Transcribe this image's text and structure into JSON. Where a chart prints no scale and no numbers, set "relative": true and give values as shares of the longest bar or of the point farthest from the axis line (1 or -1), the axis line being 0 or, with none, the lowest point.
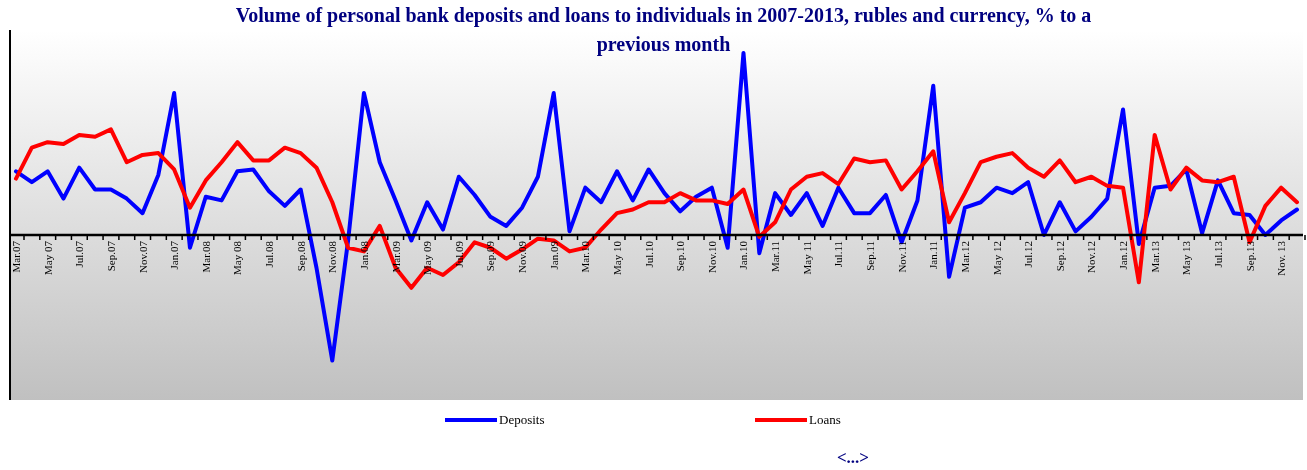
{
  "chart_data": {
    "type": "line",
    "title": "Volume of personal bank deposits and loans to individuals in 2007-2013, rubles and currency, % to a previous month",
    "relative": true,
    "legend": "bottom",
    "marker": "none",
    "line_style": "solid",
    "annotations": [
      "<...>"
    ],
    "categories": [
      "Mar.07",
      null,
      "May 07",
      null,
      "Jul.07",
      null,
      "Sep.07",
      null,
      "Nov.07",
      null,
      "Jan.07",
      null,
      "Mar.08",
      null,
      "May 08",
      null,
      "Jul.08",
      null,
      "Sep.08",
      null,
      "Nov.08",
      null,
      "Jan.08",
      null,
      "Mar.09",
      null,
      "May 09",
      null,
      "Jul.09",
      null,
      "Sep.09",
      null,
      "Nov.09",
      null,
      "Jan.09",
      null,
      "Mar.10",
      null,
      "May 10",
      null,
      "Jul.10",
      null,
      "Sep.10",
      null,
      "Nov.10",
      null,
      "Jan.10",
      null,
      "Mar.11",
      null,
      "May 11",
      null,
      "Jul.11",
      null,
      "Sep.11",
      null,
      "Nov.11",
      null,
      "Jan.11",
      null,
      "Mar.12",
      null,
      "May 12",
      null,
      "Jul.12",
      null,
      "Sep.12",
      null,
      "Nov.12",
      null,
      "Jan.12",
      null,
      "Mar.13",
      null,
      "May 13",
      null,
      "Jul.13",
      null,
      "Sep.13",
      null,
      "Nov. 13",
      null
    ],
    "series": [
      {
        "name": "Deposits",
        "color": "#0000ff",
        "values": [
          0.35,
          0.29,
          0.35,
          0.2,
          0.37,
          0.25,
          0.25,
          0.2,
          0.12,
          0.33,
          0.78,
          -0.07,
          0.21,
          0.19,
          0.35,
          0.36,
          0.24,
          0.16,
          0.25,
          -0.18,
          -0.69,
          -0.03,
          0.78,
          0.4,
          0.19,
          -0.03,
          0.18,
          0.03,
          0.32,
          0.22,
          0.1,
          0.05,
          0.15,
          0.32,
          0.78,
          0.02,
          0.26,
          0.18,
          0.35,
          0.19,
          0.36,
          0.23,
          0.13,
          0.21,
          0.26,
          -0.07,
          1,
          -0.1,
          0.23,
          0.11,
          0.23,
          0.05,
          0.26,
          0.12,
          0.12,
          0.22,
          -0.04,
          0.19,
          0.82,
          -0.23,
          0.15,
          0.18,
          0.26,
          0.23,
          0.29,
          0,
          0.18,
          0.02,
          0.1,
          0.2,
          0.69,
          -0.05,
          0.26,
          0.27,
          0.36,
          0.01,
          0.3,
          0.12,
          0.11,
          0,
          0.08,
          0.14
        ]
      },
      {
        "name": "Loans",
        "color": "#ff0000",
        "values": [
          0.31,
          0.48,
          0.51,
          0.5,
          0.55,
          0.54,
          0.58,
          0.4,
          0.44,
          0.45,
          0.36,
          0.15,
          0.3,
          0.4,
          0.51,
          0.41,
          0.41,
          0.48,
          0.45,
          0.37,
          0.18,
          -0.07,
          -0.09,
          0.05,
          -0.18,
          -0.29,
          -0.18,
          -0.22,
          -0.15,
          -0.04,
          -0.07,
          -0.13,
          -0.08,
          -0.02,
          -0.03,
          -0.09,
          -0.07,
          0.03,
          0.12,
          0.14,
          0.18,
          0.18,
          0.23,
          0.19,
          0.19,
          0.17,
          0.25,
          -0.01,
          0.07,
          0.25,
          0.32,
          0.34,
          0.28,
          0.42,
          0.4,
          0.41,
          0.25,
          0.35,
          0.46,
          0.07,
          0.23,
          0.4,
          0.43,
          0.45,
          0.37,
          0.32,
          0.41,
          0.29,
          0.32,
          0.27,
          0.26,
          -0.26,
          0.55,
          0.25,
          0.37,
          0.3,
          0.29,
          0.32,
          -0.04,
          0.16,
          0.26,
          0.18
        ]
      }
    ]
  }
}
